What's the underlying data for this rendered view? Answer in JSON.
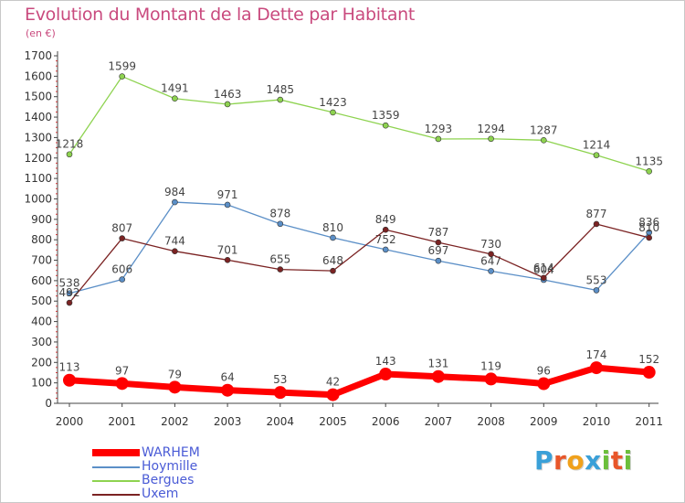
{
  "chart_data": {
    "type": "line",
    "title": "Evolution du Montant de la Dette par Habitant",
    "subtitle": "(en €)",
    "xlabel": "",
    "ylabel": "",
    "categories": [
      "2000",
      "2001",
      "2002",
      "2003",
      "2004",
      "2005",
      "2006",
      "2007",
      "2008",
      "2009",
      "2010",
      "2011"
    ],
    "ylim": [
      0,
      1700
    ],
    "yticks": [
      0,
      100,
      200,
      300,
      400,
      500,
      600,
      700,
      800,
      900,
      1000,
      1100,
      1200,
      1300,
      1400,
      1500,
      1600,
      1700
    ],
    "grid": false,
    "legend_position": "bottom-left",
    "series": [
      {
        "name": "Bergues",
        "color": "#8ed350",
        "values": [
          1218,
          1599,
          1491,
          1463,
          1485,
          1423,
          1359,
          1293,
          1294,
          1287,
          1214,
          1135
        ]
      },
      {
        "name": "Hoymille",
        "color": "#5b8fc7",
        "values": [
          538,
          606,
          984,
          971,
          878,
          810,
          752,
          697,
          647,
          604,
          553,
          836
        ]
      },
      {
        "name": "Uxem",
        "color": "#7b2323",
        "values": [
          492,
          807,
          744,
          701,
          655,
          648,
          849,
          787,
          730,
          614,
          877,
          810
        ]
      },
      {
        "name": "WARHEM",
        "color": "#ff0000",
        "values": [
          113,
          97,
          79,
          64,
          53,
          42,
          143,
          131,
          119,
          96,
          174,
          152
        ]
      }
    ],
    "legend": [
      "WARHEM",
      "Hoymille",
      "Bergues",
      "Uxem"
    ]
  },
  "brand": {
    "letters": [
      {
        "char": "P",
        "color": "#3aa0d8"
      },
      {
        "char": "r",
        "color": "#e8562a"
      },
      {
        "char": "o",
        "color": "#f0a11c"
      },
      {
        "char": "x",
        "color": "#3aa0d8"
      },
      {
        "char": "i",
        "color": "#6bbf3b"
      },
      {
        "char": "t",
        "color": "#e8562a"
      },
      {
        "char": "i",
        "color": "#6bbf3b"
      }
    ]
  }
}
